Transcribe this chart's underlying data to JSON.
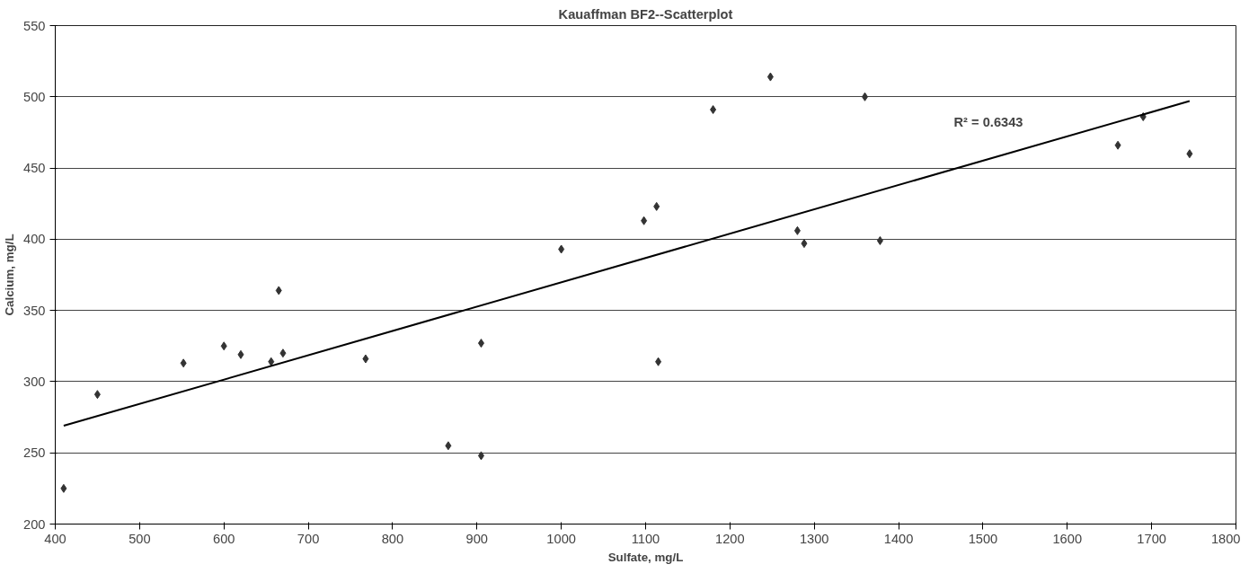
{
  "chart_data": {
    "type": "scatter",
    "title": "Kauaffman BF2--Scatterplot",
    "xlabel": "Sulfate, mg/L",
    "ylabel": "Calcium, mg/L",
    "series": [
      {
        "color": "#333333",
        "marker": "diamond",
        "x": [
          410,
          450,
          552,
          600,
          620,
          656,
          665,
          670,
          768,
          866,
          905,
          905,
          1000,
          1098,
          1113,
          1115,
          1180,
          1248,
          1280,
          1288,
          1360,
          1378,
          1660,
          1690,
          1745
        ],
        "values": [
          225,
          291,
          313,
          325,
          319,
          314,
          364,
          320,
          316,
          255,
          248,
          327,
          393,
          413,
          423,
          314,
          491,
          514,
          406,
          397,
          500,
          399,
          466,
          486,
          460
        ]
      },
      {
        "type": "line",
        "color": "#000000",
        "x": [
          410,
          1745
        ],
        "values": [
          269,
          497
        ]
      }
    ],
    "annotations": [
      "R² = 0.6343"
    ],
    "xlim": [
      400,
      1800
    ],
    "xticks": [
      400,
      500,
      600,
      700,
      800,
      900,
      1000,
      1100,
      1200,
      1300,
      1400,
      1500,
      1600,
      1700,
      1800
    ],
    "ylim": [
      200,
      550
    ],
    "yticks": [
      200,
      250,
      300,
      350,
      400,
      450,
      500,
      550
    ],
    "grid": "y"
  }
}
